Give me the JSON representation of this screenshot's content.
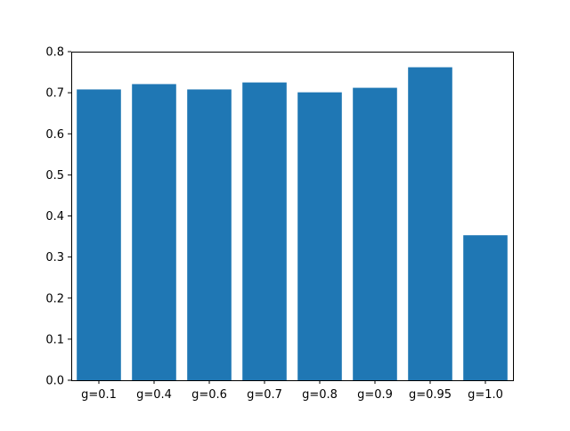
{
  "chart_data": {
    "type": "bar",
    "title": "",
    "xlabel": "",
    "ylabel": "",
    "categories": [
      "g=0.1",
      "g=0.4",
      "g=0.6",
      "g=0.7",
      "g=0.8",
      "g=0.9",
      "g=0.95",
      "g=1.0"
    ],
    "values": [
      0.708,
      0.721,
      0.708,
      0.725,
      0.701,
      0.712,
      0.762,
      0.353
    ],
    "ylim": [
      0,
      0.8
    ],
    "yticks": [
      "0.0",
      "0.1",
      "0.2",
      "0.3",
      "0.4",
      "0.5",
      "0.6",
      "0.7",
      "0.8"
    ],
    "grid": false,
    "legend": "none",
    "bar_color": "#1f77b4"
  }
}
